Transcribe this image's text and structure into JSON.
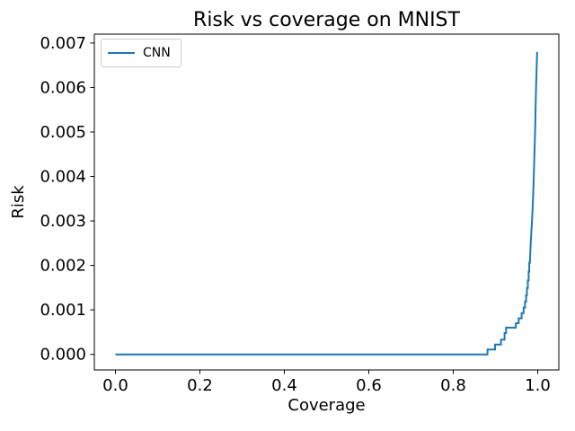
{
  "chart_data": {
    "type": "line",
    "title": "Risk vs coverage on MNIST",
    "xlabel": "Coverage",
    "ylabel": "Risk",
    "xlim": [
      -0.05,
      1.05
    ],
    "ylim": [
      -0.00035,
      0.0072
    ],
    "grid": false,
    "legend_position": "upper left",
    "xticks": {
      "values": [
        0.0,
        0.2,
        0.4,
        0.6,
        0.8,
        1.0
      ],
      "labels": [
        "0.0",
        "0.2",
        "0.4",
        "0.6",
        "0.8",
        "1.0"
      ]
    },
    "yticks": {
      "values": [
        0.0,
        0.001,
        0.002,
        0.003,
        0.004,
        0.005,
        0.006,
        0.007
      ],
      "labels": [
        "0.000",
        "0.001",
        "0.002",
        "0.003",
        "0.004",
        "0.005",
        "0.006",
        "0.007"
      ]
    },
    "colors": {
      "line": "#1f77b4",
      "axis": "#000000",
      "text": "#000000",
      "legend_border": "#cccccc",
      "background": "#ffffff"
    },
    "legend": [
      {
        "label": "CNN",
        "color": "#1f77b4"
      }
    ],
    "series": [
      {
        "name": "CNN",
        "color": "#1f77b4",
        "points": [
          [
            0.0,
            0.0
          ],
          [
            0.881,
            0.0
          ],
          [
            0.881,
            0.00011
          ],
          [
            0.899,
            0.00011
          ],
          [
            0.899,
            0.00022
          ],
          [
            0.913,
            0.00022
          ],
          [
            0.913,
            0.00033
          ],
          [
            0.9215,
            0.00033
          ],
          [
            0.9215,
            0.00048
          ],
          [
            0.925,
            0.00048
          ],
          [
            0.925,
            0.0006
          ],
          [
            0.948,
            0.0006
          ],
          [
            0.948,
            0.0007
          ],
          [
            0.955,
            0.0007
          ],
          [
            0.955,
            0.00081
          ],
          [
            0.962,
            0.00081
          ],
          [
            0.962,
            0.00093
          ],
          [
            0.9665,
            0.00093
          ],
          [
            0.9665,
            0.00105
          ],
          [
            0.97,
            0.00105
          ],
          [
            0.97,
            0.00119
          ],
          [
            0.9725,
            0.00119
          ],
          [
            0.9725,
            0.00133
          ],
          [
            0.9745,
            0.00133
          ],
          [
            0.9745,
            0.00149
          ],
          [
            0.9765,
            0.00149
          ],
          [
            0.9765,
            0.00166
          ],
          [
            0.9785,
            0.00166
          ],
          [
            0.9785,
            0.00186
          ],
          [
            0.98,
            0.00186
          ],
          [
            0.98,
            0.00206
          ],
          [
            0.9815,
            0.00206
          ],
          [
            0.9835,
            0.0025
          ],
          [
            0.986,
            0.00292
          ],
          [
            0.988,
            0.0033
          ],
          [
            0.99,
            0.0038
          ],
          [
            0.992,
            0.0044
          ],
          [
            0.994,
            0.0051
          ],
          [
            0.9955,
            0.0058
          ],
          [
            0.997,
            0.0063
          ],
          [
            0.998,
            0.00662
          ],
          [
            0.9985,
            0.0068
          ]
        ]
      }
    ]
  }
}
